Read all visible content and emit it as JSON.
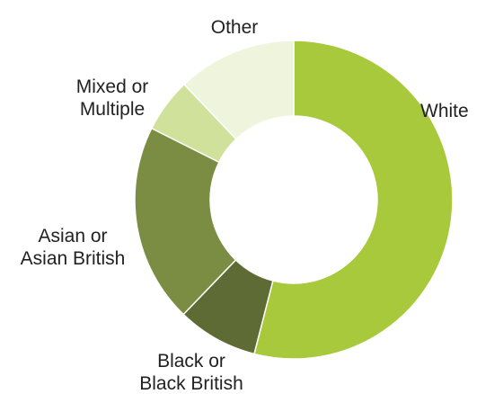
{
  "chart_data": {
    "type": "pie",
    "donut": true,
    "categories": [
      "White",
      "Black or Black British",
      "Asian or Asian British",
      "Mixed or Multiple",
      "Other"
    ],
    "label_lines": [
      [
        "White"
      ],
      [
        "Black or",
        "Black British"
      ],
      [
        "Asian or",
        "Asian British"
      ],
      [
        "Mixed or",
        "Multiple"
      ],
      [
        "Other"
      ]
    ],
    "values": [
      54.0,
      8.2,
      20.2,
      5.5,
      12.1
    ],
    "colors": [
      "#a8c93b",
      "#5f6b34",
      "#7b8c43",
      "#cfe19a",
      "#eef5dc"
    ],
    "start": "12 o'clock, clockwise",
    "title": "",
    "legend": "none"
  }
}
